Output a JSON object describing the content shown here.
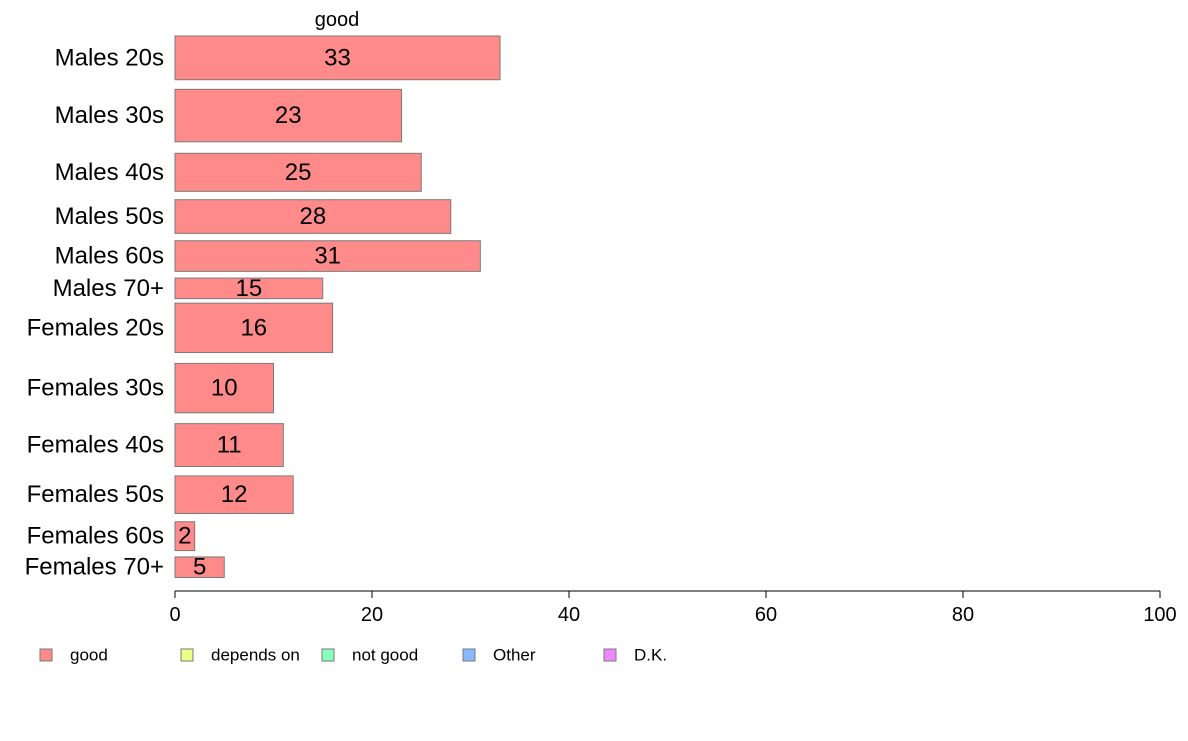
{
  "chart_data": {
    "type": "bar",
    "orientation": "horizontal",
    "series_title": "good",
    "categories": [
      "Males 20s",
      "Males 30s",
      "Males 40s",
      "Males 50s",
      "Males 60s",
      "Males 70+",
      "Females 20s",
      "Females 30s",
      "Females 40s",
      "Females 50s",
      "Females 60s",
      "Females 70+"
    ],
    "series": [
      {
        "name": "good",
        "values": [
          33,
          23,
          25,
          28,
          31,
          15,
          16,
          10,
          11,
          12,
          2,
          5
        ],
        "labels": [
          "33",
          "23",
          "25",
          "28",
          "31",
          "15",
          "16",
          "10",
          "11",
          "12",
          "2",
          "5"
        ]
      }
    ],
    "relative_group_sizes": [
      1.0,
      1.2,
      0.87,
      0.77,
      0.7,
      0.47,
      1.13,
      1.13,
      0.98,
      0.86,
      0.66,
      0.47
    ],
    "xlim": [
      0,
      100
    ],
    "xticks": [
      "0",
      "20",
      "40",
      "60",
      "80",
      "100"
    ],
    "grid": false,
    "legend_position": "bottom",
    "legend": [
      {
        "label": "good",
        "color": "#ff8a8a"
      },
      {
        "label": "depends on",
        "color": "#eeff88"
      },
      {
        "label": "not good",
        "color": "#88ffbb"
      },
      {
        "label": "Other",
        "color": "#88b8ff"
      },
      {
        "label": "D.K.",
        "color": "#ee88ff"
      }
    ],
    "bar_color": "#ff8a8a",
    "bar_border_color": "#7a7a7a"
  }
}
